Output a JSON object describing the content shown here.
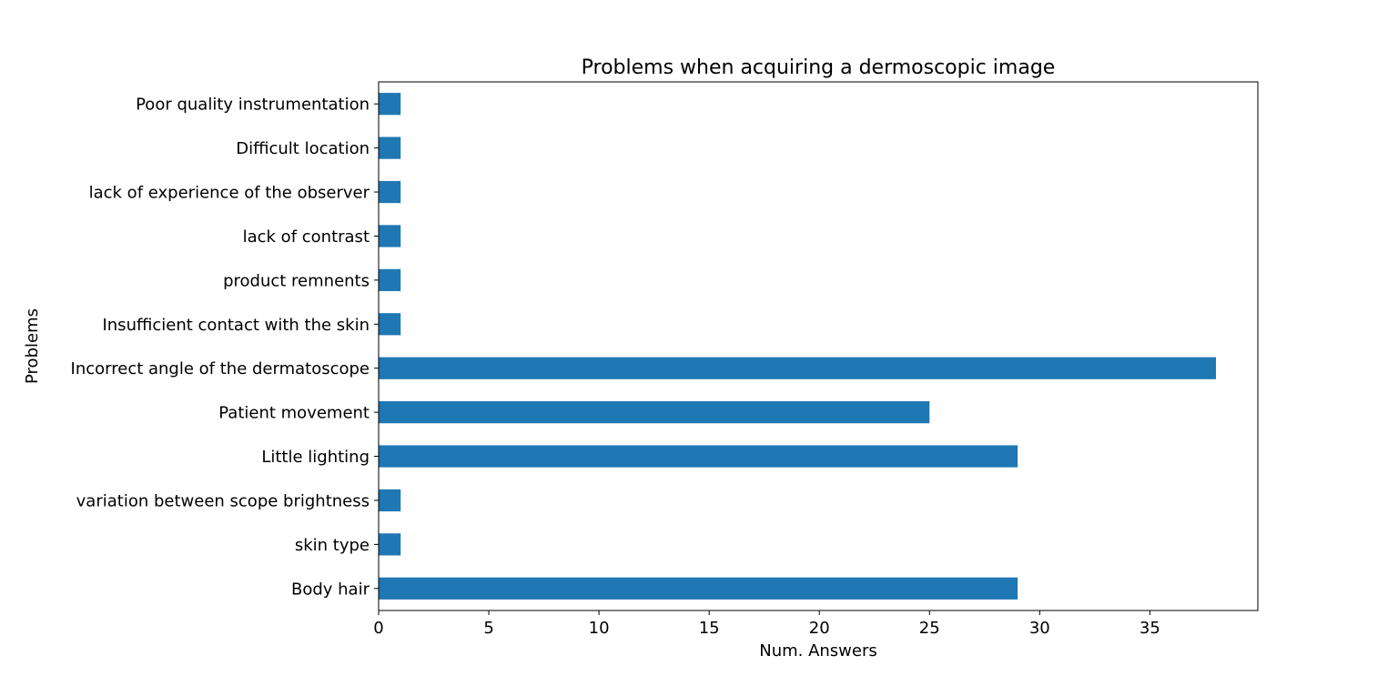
{
  "colors": {
    "bar": "#1f77b4",
    "axes": "#000000",
    "background": "#ffffff"
  },
  "chart_data": {
    "type": "bar",
    "orientation": "horizontal",
    "title": "Problems when acquiring a dermoscopic image",
    "xlabel": "Num. Answers",
    "ylabel": "Problems",
    "categories": [
      "Body hair",
      "skin type",
      "variation between scope brightness",
      "Little lighting",
      "Patient movement",
      "Incorrect angle of the dermatoscope",
      "Insufficient contact with the skin",
      "product remnents",
      "lack of contrast",
      "lack of experience of the observer",
      "Difficult location",
      "Poor quality instrumentation"
    ],
    "values": [
      29,
      1,
      1,
      29,
      25,
      38,
      1,
      1,
      1,
      1,
      1,
      1
    ],
    "xlim": [
      0,
      39.9
    ],
    "xticks": [
      0,
      5,
      10,
      15,
      20,
      25,
      30,
      35
    ],
    "grid": false,
    "legend": "none"
  }
}
